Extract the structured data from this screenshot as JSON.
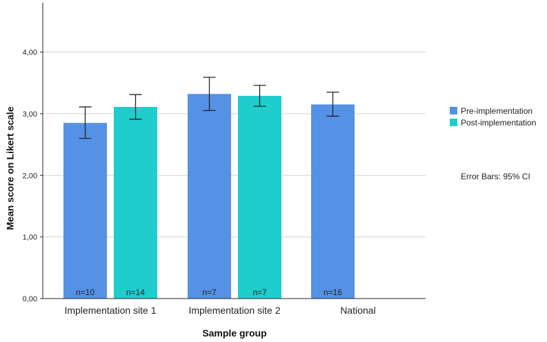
{
  "chart_data": {
    "type": "bar",
    "xlabel": "Sample group",
    "ylabel": "Mean score on Likert scale",
    "ylim": [
      0,
      4.8
    ],
    "yticks": [
      "0,00",
      "1,00",
      "2,00",
      "3,00",
      "4,00"
    ],
    "ytick_values": [
      0,
      1,
      2,
      3,
      4
    ],
    "categories": [
      "Implementation site 1",
      "Implementation site 2",
      "National"
    ],
    "series": [
      {
        "name": "Pre-implementation",
        "color": "#5591E4",
        "values": [
          2.85,
          3.32,
          3.15
        ],
        "ci_low": [
          2.6,
          3.05,
          2.96
        ],
        "ci_high": [
          3.11,
          3.59,
          3.35
        ],
        "n_labels": [
          "n=10",
          "n=7",
          "n=16"
        ]
      },
      {
        "name": "Post-implementation",
        "color": "#1FCDCD",
        "values": [
          3.11,
          3.29,
          null
        ],
        "ci_low": [
          2.91,
          3.12,
          null
        ],
        "ci_high": [
          3.31,
          3.46,
          null
        ],
        "n_labels": [
          "n=14",
          "n=7",
          null
        ]
      }
    ],
    "legend_position": "right",
    "note": "Error Bars: 95% CI"
  }
}
